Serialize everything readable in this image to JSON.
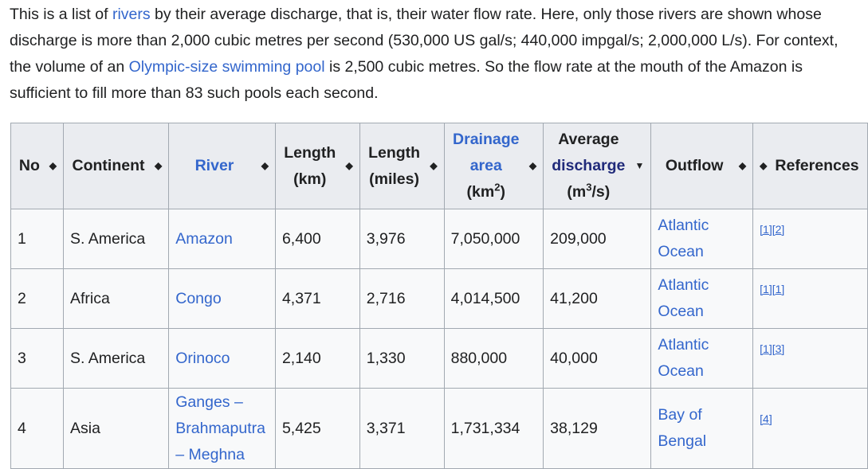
{
  "intro": {
    "t1": "This is a list of ",
    "l1": "rivers",
    "t2": " by their average ",
    "l2": "discharge",
    "t3": ", that is, their water flow rate. Here, only those rivers are shown whose discharge is more than 2,000 cubic metres per second (530,000 US gal/s; 440,000 impgal/s; 2,000,000 L/s). For context, the volume of an ",
    "l3": "Olympic-size swimming pool",
    "t4": " is 2,500 cubic metres. So the flow rate at the mouth of the Amazon is sufficient to fill more than 83 such pools each second."
  },
  "headers": {
    "no": "No",
    "continent": "Continent",
    "river": "River",
    "length_km_1": "Length",
    "length_km_2": "(km)",
    "length_mi_1": "Length",
    "length_mi_2": "(miles)",
    "drain_1": "Drainage",
    "drain_2": "area",
    "drain_3": "(km",
    "drain_sup": "2",
    "drain_4": ")",
    "avg_1": "Average",
    "avg_2": "discharge",
    "avg_3": "(m",
    "avg_sup": "3",
    "avg_4": "/s)",
    "outflow": "Outflow",
    "refs": "References"
  },
  "rows": [
    {
      "no": "1",
      "continent": "S. America",
      "river": "Amazon",
      "km": "6,400",
      "mi": "3,976",
      "area": "7,050,000",
      "discharge": "209,000",
      "outflow_1": "Atlantic",
      "outflow_2": "Ocean",
      "ref": "[1][2]"
    },
    {
      "no": "2",
      "continent": "Africa",
      "river": "Congo",
      "km": "4,371",
      "mi": "2,716",
      "area": "4,014,500",
      "discharge": "41,200",
      "outflow_1": "Atlantic",
      "outflow_2": "Ocean",
      "ref": "[1][1]"
    },
    {
      "no": "3",
      "continent": "S. America",
      "river": "Orinoco",
      "km": "2,140",
      "mi": "1,330",
      "area": "880,000",
      "discharge": "40,000",
      "outflow_1": "Atlantic",
      "outflow_2": "Ocean",
      "ref": "[1][3]"
    },
    {
      "no": "4",
      "continent": "Asia",
      "river_1": "Ganges –",
      "river_2": "Brahmaputra",
      "river_3": "– Meghna",
      "km": "5,425",
      "mi": "3,371",
      "area": "1,731,334",
      "discharge": "38,129",
      "outflow_1": "Bay of Bengal",
      "ref": "[4]"
    }
  ],
  "icons": {
    "sort": "sort-both-icon",
    "sort_desc": "sort-descending-icon"
  }
}
